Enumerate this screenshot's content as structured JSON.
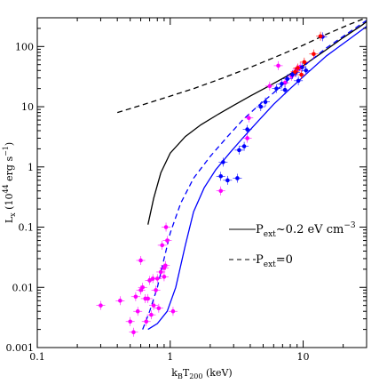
{
  "chart_data": {
    "type": "scatter",
    "xlabel": "k_BT_200 (keV)",
    "ylabel": "L_x (10^44 erg s^-1)",
    "xlim": [
      0.1,
      30
    ],
    "ylim": [
      0.001,
      300
    ],
    "xscale": "log",
    "yscale": "log",
    "grid": false,
    "legend_position": "center-right",
    "x_tick_labels": [
      {
        "value": 0.1,
        "label": "0.1"
      },
      {
        "value": 1,
        "label": "1"
      },
      {
        "value": 10,
        "label": "10"
      }
    ],
    "y_tick_labels": [
      {
        "value": 0.001,
        "label": "0.001"
      },
      {
        "value": 0.01,
        "label": "0.01"
      },
      {
        "value": 0.1,
        "label": "0.1"
      },
      {
        "value": 1,
        "label": "1"
      },
      {
        "value": 10,
        "label": "10"
      },
      {
        "value": 100,
        "label": "100"
      }
    ],
    "legend": [
      {
        "label": "P_ext~0.2 eV cm^-3",
        "style": "solid"
      },
      {
        "label": "P_ext=0",
        "style": "dashed"
      }
    ],
    "series": [
      {
        "style": "solid",
        "color": "#000000",
        "points": [
          [
            0.68,
            0.11
          ],
          [
            0.75,
            0.3
          ],
          [
            0.85,
            0.8
          ],
          [
            1.0,
            1.7
          ],
          [
            1.3,
            3.2
          ],
          [
            1.7,
            5.0
          ],
          [
            2.3,
            7.5
          ],
          [
            3.0,
            10.5
          ],
          [
            4.0,
            15
          ],
          [
            5.5,
            22
          ],
          [
            7.5,
            32
          ],
          [
            10,
            48
          ],
          [
            14,
            80
          ],
          [
            20,
            140
          ],
          [
            28,
            230
          ],
          [
            32,
            290
          ]
        ]
      },
      {
        "style": "dashed",
        "color": "#000000",
        "points": [
          [
            0.4,
            8
          ],
          [
            0.6,
            10.5
          ],
          [
            1.0,
            15
          ],
          [
            1.5,
            20
          ],
          [
            2.5,
            30
          ],
          [
            4.0,
            45
          ],
          [
            6.5,
            70
          ],
          [
            10,
            105
          ],
          [
            15,
            160
          ],
          [
            22,
            230
          ],
          [
            32,
            320
          ]
        ]
      },
      {
        "style": "solid",
        "color": "#0000ff",
        "points": [
          [
            0.68,
            0.002
          ],
          [
            0.8,
            0.0025
          ],
          [
            0.95,
            0.004
          ],
          [
            1.1,
            0.01
          ],
          [
            1.3,
            0.05
          ],
          [
            1.5,
            0.18
          ],
          [
            1.8,
            0.45
          ],
          [
            2.2,
            0.9
          ],
          [
            2.8,
            1.7
          ],
          [
            3.5,
            3.0
          ],
          [
            4.5,
            5.5
          ],
          [
            6.0,
            11
          ],
          [
            8.0,
            20
          ],
          [
            11,
            38
          ],
          [
            15,
            70
          ],
          [
            22,
            130
          ],
          [
            32,
            240
          ]
        ]
      },
      {
        "style": "dashed",
        "color": "#0000ff",
        "points": [
          [
            0.62,
            0.002
          ],
          [
            0.7,
            0.004
          ],
          [
            0.8,
            0.01
          ],
          [
            0.9,
            0.03
          ],
          [
            1.0,
            0.08
          ],
          [
            1.2,
            0.25
          ],
          [
            1.5,
            0.65
          ],
          [
            2.0,
            1.5
          ],
          [
            2.7,
            3.2
          ],
          [
            3.5,
            6.0
          ],
          [
            4.5,
            10
          ],
          [
            6.0,
            17
          ],
          [
            8.0,
            30
          ],
          [
            11,
            55
          ],
          [
            15,
            95
          ],
          [
            22,
            170
          ],
          [
            32,
            300
          ]
        ]
      }
    ],
    "scatter": [
      {
        "color": "#ff00ff",
        "points": [
          [
            0.3,
            0.005
          ],
          [
            0.42,
            0.006
          ],
          [
            0.5,
            0.0027
          ],
          [
            0.53,
            0.0018
          ],
          [
            0.55,
            0.007
          ],
          [
            0.57,
            0.004
          ],
          [
            0.6,
            0.009
          ],
          [
            0.62,
            0.01
          ],
          [
            0.65,
            0.0065
          ],
          [
            0.66,
            0.0027
          ],
          [
            0.68,
            0.0065
          ],
          [
            0.7,
            0.013
          ],
          [
            0.72,
            0.0035
          ],
          [
            0.74,
            0.014
          ],
          [
            0.75,
            0.005
          ],
          [
            0.78,
            0.009
          ],
          [
            0.8,
            0.014
          ],
          [
            0.82,
            0.0045
          ],
          [
            0.85,
            0.018
          ],
          [
            0.87,
            0.05
          ],
          [
            0.9,
            0.021
          ],
          [
            0.9,
            0.015
          ],
          [
            0.92,
            0.023
          ],
          [
            0.93,
            0.1
          ],
          [
            0.95,
            0.06
          ],
          [
            0.6,
            0.028
          ],
          [
            1.05,
            0.004
          ],
          [
            2.4,
            0.4
          ],
          [
            3.8,
            3.0
          ],
          [
            3.9,
            6.5
          ],
          [
            5.6,
            22
          ],
          [
            6.5,
            48
          ],
          [
            7.3,
            25
          ],
          [
            8.2,
            32
          ],
          [
            9.0,
            42
          ],
          [
            9.5,
            46
          ]
        ]
      },
      {
        "color": "#0000ff",
        "points": [
          [
            2.4,
            0.7
          ],
          [
            2.5,
            1.2
          ],
          [
            2.7,
            0.6
          ],
          [
            3.2,
            0.65
          ],
          [
            3.3,
            1.9
          ],
          [
            3.6,
            2.2
          ],
          [
            3.8,
            4.2
          ],
          [
            4.8,
            10
          ],
          [
            5.2,
            12
          ],
          [
            6.3,
            20
          ],
          [
            6.9,
            24
          ],
          [
            7.3,
            19
          ],
          [
            7.6,
            29
          ],
          [
            8.3,
            34
          ],
          [
            8.8,
            37
          ],
          [
            9.2,
            27
          ],
          [
            9.8,
            45
          ],
          [
            10.5,
            40
          ],
          [
            14,
            145
          ]
        ]
      },
      {
        "color": "#ff0000",
        "points": [
          [
            8.7,
            38
          ],
          [
            9.1,
            44
          ],
          [
            9.7,
            34
          ],
          [
            10.2,
            55
          ],
          [
            12,
            75
          ],
          [
            13.5,
            148
          ]
        ]
      }
    ]
  }
}
